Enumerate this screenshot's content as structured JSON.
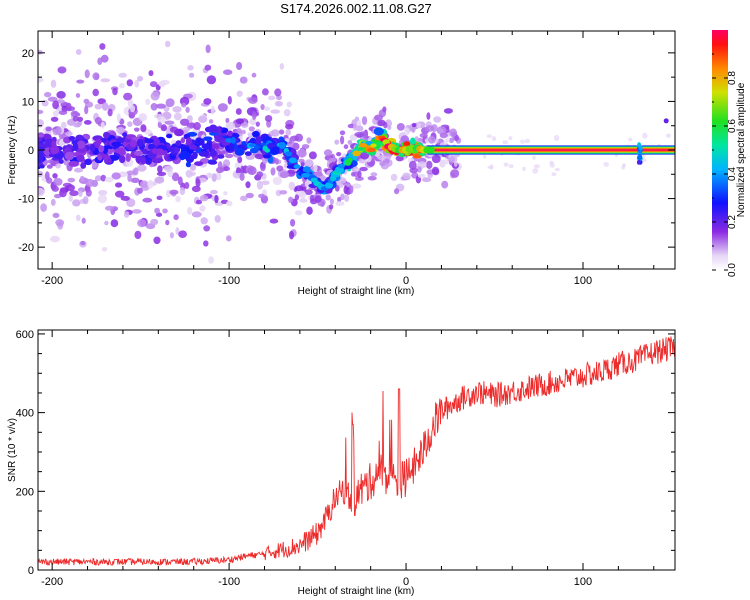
{
  "title": "S174.2026.002.11.08.G27",
  "chart_data": [
    {
      "type": "heatmap",
      "name": "spectrogram",
      "title": "S174.2026.002.11.08.G27",
      "xlabel": "Height of straight line (km)",
      "ylabel": "Frequency (Hz)",
      "xlim": [
        -208,
        152
      ],
      "ylim": [
        -24.5,
        24.5
      ],
      "xticks": [
        -200,
        -100,
        0,
        100
      ],
      "yticks": [
        -20,
        -10,
        0,
        10,
        20
      ],
      "colorbar": {
        "label": "Normalized spectral amplitude",
        "range": [
          0.0,
          1.0
        ],
        "ticks": [
          "0.0",
          "0.2",
          "0.4",
          "0.6",
          "0.8"
        ],
        "tick_values": [
          0.0,
          0.2,
          0.4,
          0.6,
          0.8
        ]
      },
      "ridge": {
        "description": "dominant frequency track",
        "x": [
          -200,
          -180,
          -160,
          -140,
          -120,
          -100,
          -90,
          -80,
          -70,
          -60,
          -50,
          -45,
          -40,
          -35,
          -30,
          -25,
          -20,
          -15,
          -10,
          -5,
          0,
          5,
          10,
          20,
          40,
          60,
          80,
          100,
          120,
          130,
          140,
          150
        ],
        "y": [
          0,
          0,
          0,
          0,
          0,
          2,
          1,
          0,
          1,
          -4,
          -7,
          -8,
          -5,
          -3,
          -2,
          1,
          0,
          3,
          1,
          0,
          0,
          0.5,
          0,
          0,
          0,
          0,
          0,
          0,
          0,
          0,
          0,
          0
        ],
        "amplitude": [
          0.25,
          0.25,
          0.25,
          0.25,
          0.3,
          0.3,
          0.35,
          0.35,
          0.35,
          0.35,
          0.4,
          0.35,
          0.35,
          0.4,
          0.5,
          0.7,
          0.7,
          0.6,
          0.85,
          0.9,
          0.9,
          0.95,
          0.95,
          1.0,
          1.0,
          1.0,
          1.0,
          1.0,
          1.0,
          0.7,
          1.0,
          1.0
        ]
      }
    },
    {
      "type": "line",
      "name": "snr",
      "xlabel": "Height of straight line (km)",
      "ylabel": "SNR (10 * v/v)",
      "xlim": [
        -208,
        152
      ],
      "ylim": [
        0,
        610
      ],
      "xticks": [
        -200,
        -100,
        0,
        100
      ],
      "yticks": [
        0,
        200,
        400,
        600
      ],
      "color": "#ee2b2b",
      "series": [
        {
          "name": "SNR",
          "x": [
            -208,
            -180,
            -150,
            -120,
            -100,
            -90,
            -80,
            -70,
            -60,
            -50,
            -45,
            -40,
            -35,
            -30,
            -25,
            -20,
            -15,
            -10,
            -5,
            0,
            5,
            10,
            15,
            20,
            30,
            40,
            50,
            60,
            70,
            80,
            90,
            100,
            110,
            120,
            130,
            140,
            150
          ],
          "y": [
            20,
            20,
            20,
            20,
            25,
            35,
            40,
            50,
            60,
            90,
            130,
            180,
            200,
            170,
            200,
            220,
            250,
            230,
            220,
            230,
            260,
            300,
            360,
            400,
            430,
            450,
            440,
            450,
            460,
            470,
            480,
            490,
            500,
            520,
            530,
            550,
            560
          ]
        }
      ]
    }
  ]
}
